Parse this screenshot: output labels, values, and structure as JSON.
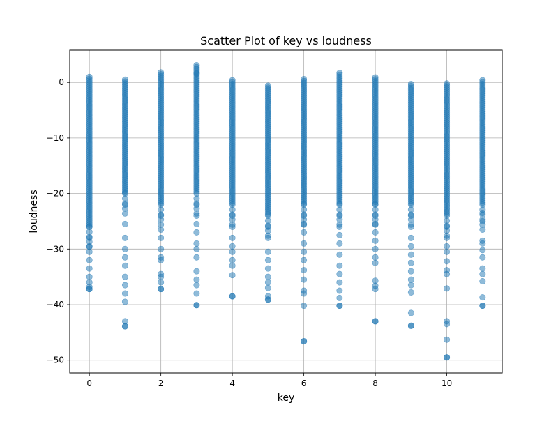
{
  "chart_data": {
    "type": "scatter",
    "title": "Scatter Plot of key vs loudness",
    "xlabel": "key",
    "ylabel": "loudness",
    "xlim": [
      -0.55,
      11.55
    ],
    "ylim": [
      -52.3,
      5.8
    ],
    "xticks": [
      0,
      2,
      4,
      6,
      8,
      10
    ],
    "yticks": [
      0,
      -10,
      -20,
      -30,
      -40,
      -50
    ],
    "grid": true,
    "marker_color": "#1f77b4",
    "marker_alpha": 0.5,
    "columns": [
      {
        "x": 0,
        "max": 1.0,
        "dense_min": -26.0,
        "min": -37.2,
        "outliers": [
          -28.0,
          -29.5,
          -30.5,
          -32.0,
          -33.5,
          -35.0,
          -36.0,
          -36.8,
          -37.2
        ]
      },
      {
        "x": 1,
        "max": 0.5,
        "dense_min": -20.0,
        "min": -43.9,
        "outliers": [
          -22.0,
          -25.5,
          -28.0,
          -30.0,
          -31.5,
          -33.0,
          -35.0,
          -36.5,
          -38.0,
          -39.5,
          -43.0,
          -43.9
        ]
      },
      {
        "x": 2,
        "max": 1.8,
        "dense_min": -22.0,
        "min": -37.2,
        "outliers": [
          -24.0,
          -26.5,
          -28.0,
          -30.0,
          -31.5,
          -32.0,
          -34.5,
          -35.0,
          -36.0,
          -37.2
        ]
      },
      {
        "x": 3,
        "max": 3.1,
        "dense_min": -20.0,
        "min": -40.1,
        "outliers": [
          1.6,
          -22.0,
          -24.0,
          -25.5,
          -27.0,
          -29.0,
          -30.0,
          -31.5,
          -34.0,
          -35.5,
          -36.5,
          -38.0,
          -40.1
        ]
      },
      {
        "x": 4,
        "max": 0.4,
        "dense_min": -22.0,
        "min": -38.5,
        "outliers": [
          -24.0,
          -26.0,
          -28.0,
          -29.5,
          -30.5,
          -32.0,
          -33.0,
          -34.7,
          -38.5
        ]
      },
      {
        "x": 5,
        "max": -0.6,
        "dense_min": -24.0,
        "min": -39.1,
        "outliers": [
          -26.0,
          -28.0,
          -30.5,
          -32.0,
          -33.5,
          -35.0,
          -36.0,
          -37.0,
          -38.5,
          -39.1
        ]
      },
      {
        "x": 6,
        "max": 0.6,
        "dense_min": -22.0,
        "min": -46.6,
        "outliers": [
          -24.0,
          -25.5,
          -27.0,
          -29.0,
          -30.5,
          -32.0,
          -33.8,
          -35.5,
          -37.5,
          -38.0,
          -40.2,
          -46.6
        ]
      },
      {
        "x": 7,
        "max": 1.7,
        "dense_min": -22.0,
        "min": -40.2,
        "outliers": [
          -24.0,
          -26.0,
          -27.5,
          -29.0,
          -31.0,
          -33.0,
          -34.5,
          -36.0,
          -37.5,
          -38.8,
          -40.2
        ]
      },
      {
        "x": 8,
        "max": 0.9,
        "dense_min": -22.0,
        "min": -43.0,
        "outliers": [
          -24.0,
          -25.5,
          -27.0,
          -28.5,
          -30.0,
          -31.5,
          -32.5,
          -35.7,
          -36.6,
          -37.2,
          -43.0
        ]
      },
      {
        "x": 9,
        "max": -0.3,
        "dense_min": -22.0,
        "min": -43.8,
        "outliers": [
          -24.0,
          -26.0,
          -28.0,
          -29.5,
          -31.0,
          -32.5,
          -34.0,
          -35.5,
          -36.5,
          -37.8,
          -41.5,
          -43.8
        ]
      },
      {
        "x": 10,
        "max": -0.2,
        "dense_min": -24.0,
        "min": -49.5,
        "outliers": [
          -26.0,
          -28.0,
          -29.5,
          -30.5,
          -32.2,
          -33.8,
          -34.5,
          -37.1,
          -43.0,
          -43.5,
          -46.3,
          -49.5
        ]
      },
      {
        "x": 11,
        "max": 0.4,
        "dense_min": -22.0,
        "min": -40.2,
        "outliers": [
          -23.5,
          -25.0,
          -26.5,
          -28.5,
          -29.0,
          -30.2,
          -31.5,
          -33.5,
          -34.5,
          -35.8,
          -38.7,
          -40.2
        ]
      }
    ]
  }
}
